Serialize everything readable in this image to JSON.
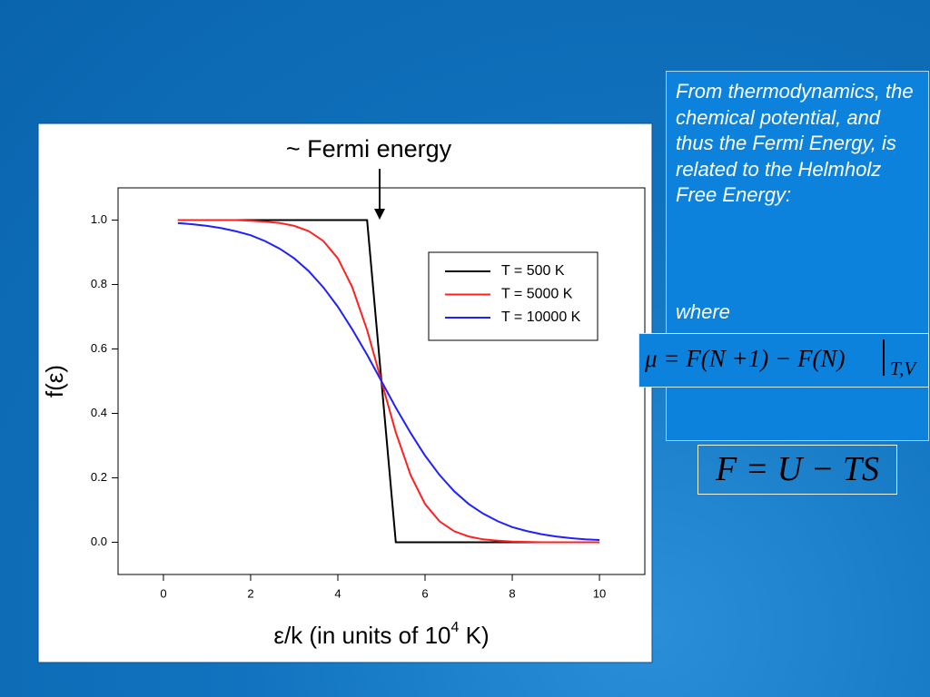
{
  "chart_data": {
    "type": "line",
    "annotation": "~ Fermi energy",
    "x_label": {
      "before": "ε/k (in units of 10",
      "superscript": "4",
      "after": " K)"
    },
    "y_label": "f(ε)",
    "x": [
      0.33,
      0.67,
      1.0,
      1.33,
      1.67,
      2.0,
      2.33,
      2.67,
      3.0,
      3.33,
      3.67,
      4.0,
      4.33,
      4.67,
      5.0,
      5.33,
      5.67,
      6.0,
      6.33,
      6.67,
      7.0,
      7.33,
      7.67,
      8.0,
      8.33,
      8.67,
      9.0,
      9.33,
      9.67,
      10.0
    ],
    "series": [
      {
        "name": "T = 500 K",
        "color": "#000000",
        "values": [
          1,
          1,
          1,
          1,
          1,
          1,
          1,
          1,
          1,
          1,
          1,
          1,
          1,
          1,
          0.5,
          0,
          0,
          0,
          0,
          0,
          0,
          0,
          0,
          0,
          0,
          0,
          0,
          0,
          0,
          0
        ]
      },
      {
        "name": "T = 5000 K",
        "color": "#ff2020",
        "values": [
          1,
          1,
          1,
          1,
          1,
          0.998,
          0.995,
          0.991,
          0.982,
          0.966,
          0.935,
          0.881,
          0.792,
          0.659,
          0.5,
          0.341,
          0.208,
          0.119,
          0.065,
          0.034,
          0.018,
          0.009,
          0.005,
          0.002,
          0.001,
          0,
          0,
          0,
          0,
          0
        ]
      },
      {
        "name": "T = 10000 K",
        "color": "#2020ff",
        "values": [
          0.991,
          0.987,
          0.982,
          0.975,
          0.965,
          0.953,
          0.935,
          0.911,
          0.881,
          0.842,
          0.791,
          0.731,
          0.661,
          0.582,
          0.5,
          0.418,
          0.339,
          0.269,
          0.209,
          0.158,
          0.119,
          0.089,
          0.065,
          0.047,
          0.035,
          0.025,
          0.018,
          0.013,
          0.009,
          0.007
        ]
      }
    ],
    "xlim": [
      -1.04,
      11.04
    ],
    "ylim": [
      -0.1,
      1.1
    ],
    "xticks": [
      0,
      2,
      4,
      6,
      8,
      10
    ],
    "yticks": [
      {
        "value": 0,
        "label": "0.0"
      },
      0.2,
      0.4,
      0.6,
      0.8,
      {
        "value": 1,
        "label": "1.0"
      }
    ],
    "grid": false,
    "legend_position": "upper-right"
  },
  "slide": {
    "text": "From thermodynamics, the chemical potential, and thus the Fermi Energy, is related to the Helmholz Free Energy:",
    "equation_1": {
      "main": "μ = F(N +1) − F(N)",
      "subscript": "T,V"
    },
    "where": "where",
    "equation_2": "F = U − TS"
  }
}
